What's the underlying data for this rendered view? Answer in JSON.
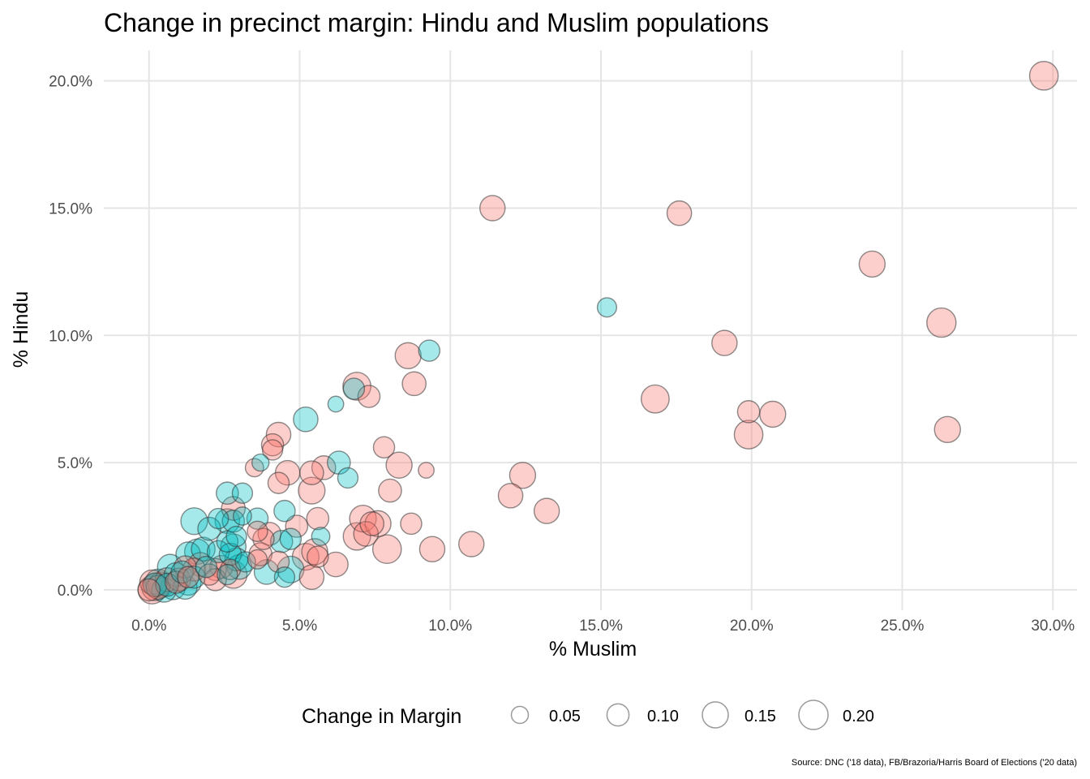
{
  "chart_data": {
    "type": "scatter",
    "title": "Change in precinct margin: Hindu and Muslim populations",
    "xlabel": "% Muslim",
    "ylabel": "% Hindu",
    "xlim": [
      -1.5,
      30.8
    ],
    "ylim": [
      -0.8,
      21.2
    ],
    "x_ticks": [
      0,
      5,
      10,
      15,
      20,
      25,
      30
    ],
    "x_tick_labels": [
      "0.0%",
      "5.0%",
      "10.0%",
      "15.0%",
      "20.0%",
      "25.0%",
      "30.0%"
    ],
    "y_ticks": [
      0,
      5,
      10,
      15,
      20
    ],
    "y_tick_labels": [
      "0.0%",
      "5.0%",
      "10.0%",
      "15.0%",
      "20.0%"
    ],
    "grid": true,
    "size_legend": {
      "title": "Change in Margin",
      "placement": "bottom",
      "values": [
        0.05,
        0.1,
        0.15,
        0.2
      ],
      "labels": [
        "0.05",
        "0.10",
        "0.15",
        "0.20"
      ]
    },
    "colors": {
      "red_fill": "#f8766d",
      "teal_fill": "#00bfc4",
      "stroke": "#333333"
    },
    "series": [
      {
        "color": "red",
        "points": [
          [
            29.7,
            20.2,
            0.19
          ],
          [
            11.4,
            15.0,
            0.14
          ],
          [
            17.6,
            14.8,
            0.13
          ],
          [
            24.0,
            12.8,
            0.15
          ],
          [
            26.3,
            10.5,
            0.2
          ],
          [
            19.1,
            9.7,
            0.14
          ],
          [
            16.8,
            7.5,
            0.18
          ],
          [
            20.7,
            6.9,
            0.15
          ],
          [
            19.9,
            6.1,
            0.19
          ],
          [
            19.9,
            7.0,
            0.1
          ],
          [
            26.5,
            6.3,
            0.15
          ],
          [
            8.6,
            9.2,
            0.15
          ],
          [
            8.8,
            8.1,
            0.12
          ],
          [
            6.9,
            8.0,
            0.18
          ],
          [
            7.3,
            7.6,
            0.1
          ],
          [
            4.3,
            6.1,
            0.13
          ],
          [
            4.1,
            5.7,
            0.1
          ],
          [
            4.1,
            5.5,
            0.08
          ],
          [
            7.8,
            5.6,
            0.09
          ],
          [
            5.8,
            4.8,
            0.12
          ],
          [
            5.4,
            4.6,
            0.12
          ],
          [
            4.6,
            4.6,
            0.13
          ],
          [
            3.5,
            4.8,
            0.06
          ],
          [
            8.3,
            4.9,
            0.15
          ],
          [
            12.4,
            4.5,
            0.15
          ],
          [
            4.3,
            4.2,
            0.09
          ],
          [
            5.4,
            3.9,
            0.16
          ],
          [
            8.0,
            3.9,
            0.11
          ],
          [
            12.0,
            3.7,
            0.13
          ],
          [
            13.2,
            3.1,
            0.14
          ],
          [
            2.8,
            3.2,
            0.12
          ],
          [
            7.1,
            2.8,
            0.16
          ],
          [
            7.6,
            2.6,
            0.15
          ],
          [
            7.4,
            2.6,
            0.12
          ],
          [
            5.6,
            2.8,
            0.1
          ],
          [
            4.9,
            2.5,
            0.1
          ],
          [
            8.7,
            2.6,
            0.09
          ],
          [
            3.6,
            2.3,
            0.08
          ],
          [
            3.8,
            2.0,
            0.09
          ],
          [
            4.0,
            2.2,
            0.11
          ],
          [
            6.9,
            2.1,
            0.17
          ],
          [
            7.2,
            2.2,
            0.13
          ],
          [
            7.9,
            1.6,
            0.19
          ],
          [
            9.4,
            1.6,
            0.14
          ],
          [
            10.7,
            1.8,
            0.14
          ],
          [
            5.2,
            1.3,
            0.16
          ],
          [
            5.5,
            1.5,
            0.15
          ],
          [
            5.6,
            1.3,
            0.09
          ],
          [
            3.7,
            1.4,
            0.11
          ],
          [
            3.6,
            1.2,
            0.07
          ],
          [
            6.2,
            1.0,
            0.13
          ],
          [
            4.3,
            1.1,
            0.09
          ],
          [
            5.4,
            0.5,
            0.13
          ],
          [
            2.8,
            0.6,
            0.17
          ],
          [
            2.2,
            0.8,
            0.1
          ],
          [
            2.4,
            0.9,
            0.11
          ],
          [
            1.7,
            1.0,
            0.12
          ],
          [
            1.5,
            0.8,
            0.11
          ],
          [
            1.2,
            0.9,
            0.1
          ],
          [
            2.0,
            0.6,
            0.09
          ],
          [
            2.2,
            0.4,
            0.1
          ],
          [
            2.7,
            0.8,
            0.08
          ],
          [
            1.0,
            0.4,
            0.11
          ],
          [
            0.9,
            0.3,
            0.1
          ],
          [
            0.6,
            0.4,
            0.12
          ],
          [
            0.4,
            0.2,
            0.14
          ],
          [
            0.2,
            0.1,
            0.16
          ],
          [
            0.1,
            0.3,
            0.13
          ],
          [
            0.1,
            0.0,
            0.18
          ],
          [
            0.0,
            0.0,
            0.1
          ],
          [
            0.3,
            0.1,
            0.12
          ],
          [
            9.2,
            4.7,
            0.04
          ],
          [
            1.3,
            0.5,
            0.09
          ]
        ]
      },
      {
        "color": "teal",
        "points": [
          [
            15.2,
            11.1,
            0.07
          ],
          [
            9.3,
            9.4,
            0.09
          ],
          [
            6.8,
            7.9,
            0.09
          ],
          [
            6.2,
            7.3,
            0.04
          ],
          [
            5.2,
            6.7,
            0.13
          ],
          [
            6.3,
            5.0,
            0.11
          ],
          [
            6.6,
            4.4,
            0.08
          ],
          [
            3.7,
            5.0,
            0.05
          ],
          [
            2.6,
            3.8,
            0.1
          ],
          [
            3.1,
            3.8,
            0.08
          ],
          [
            4.5,
            3.1,
            0.09
          ],
          [
            5.7,
            2.1,
            0.06
          ],
          [
            1.5,
            2.7,
            0.16
          ],
          [
            2.0,
            2.4,
            0.11
          ],
          [
            2.3,
            2.8,
            0.08
          ],
          [
            2.6,
            2.7,
            0.13
          ],
          [
            2.8,
            2.7,
            0.1
          ],
          [
            3.1,
            2.9,
            0.06
          ],
          [
            3.6,
            2.8,
            0.09
          ],
          [
            4.4,
            1.9,
            0.1
          ],
          [
            4.7,
            2.0,
            0.09
          ],
          [
            2.8,
            1.7,
            0.14
          ],
          [
            2.6,
            1.9,
            0.09
          ],
          [
            2.9,
            2.1,
            0.08
          ],
          [
            1.8,
            1.6,
            0.12
          ],
          [
            1.3,
            1.4,
            0.13
          ],
          [
            1.6,
            1.5,
            0.14
          ],
          [
            2.3,
            1.5,
            0.1
          ],
          [
            2.7,
            1.4,
            0.1
          ],
          [
            2.9,
            1.2,
            0.11
          ],
          [
            3.0,
            0.9,
            0.13
          ],
          [
            3.2,
            1.1,
            0.08
          ],
          [
            3.9,
            0.7,
            0.13
          ],
          [
            4.7,
            0.8,
            0.16
          ],
          [
            4.5,
            0.5,
            0.08
          ],
          [
            1.1,
            0.7,
            0.1
          ],
          [
            0.7,
            0.9,
            0.14
          ],
          [
            0.9,
            0.6,
            0.12
          ],
          [
            1.3,
            0.3,
            0.15
          ],
          [
            1.5,
            0.5,
            0.1
          ],
          [
            0.6,
            0.2,
            0.11
          ],
          [
            1.2,
            0.1,
            0.12
          ],
          [
            0.8,
            0.1,
            0.13
          ],
          [
            0.3,
            0.3,
            0.15
          ],
          [
            0.5,
            0.0,
            0.13
          ],
          [
            0.2,
            0.2,
            0.12
          ],
          [
            2.6,
            0.6,
            0.08
          ],
          [
            1.9,
            0.9,
            0.09
          ]
        ]
      }
    ]
  },
  "source": "Source: DNC ('18 data), FB/Brazoria/Harris Board of Elections ('20 data)"
}
